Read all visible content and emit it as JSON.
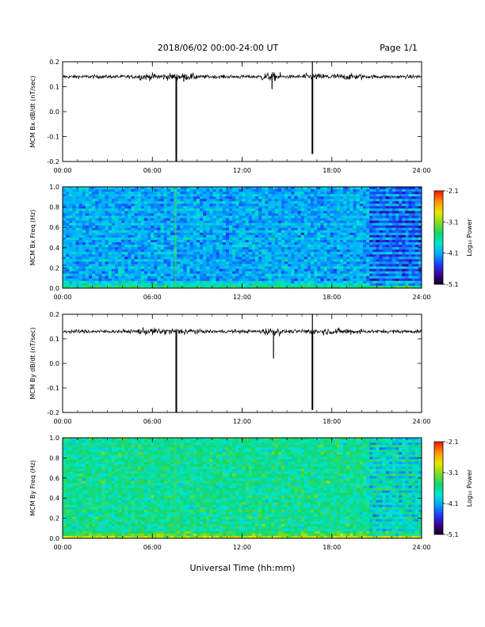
{
  "header": {
    "title": "2018/06/02  00:00-24:00 UT",
    "page": "Page 1/1"
  },
  "colors": {
    "trace": "#000000",
    "colormap": [
      "#0b0010",
      "#3b008f",
      "#1f3bff",
      "#00a8ff",
      "#00e6d0",
      "#14d66a",
      "#7fdc21",
      "#e8e600",
      "#ff9a00",
      "#ff1e00"
    ]
  },
  "colorbar": {
    "label": "Log₁₀ Power",
    "ticks": [
      "-2.1",
      "-3.1",
      "-4.1",
      "-5.1"
    ]
  },
  "x_axis": {
    "ticks": [
      "00:00",
      "06:00",
      "12:00",
      "18:00",
      "24:00"
    ],
    "label": "Universal Time (hh:mm)"
  },
  "chart_data": [
    {
      "type": "line",
      "ylabel": "MCM Bx dB/dt (nT/sec)",
      "xlim": [
        0,
        24
      ],
      "ylim": [
        -0.2,
        0.2
      ],
      "yticks": [
        "0.2",
        "0.1",
        "0.0",
        "-0.1",
        "-0.2"
      ],
      "baseline": 0.14,
      "spikes": [
        {
          "x": 7.6,
          "y": -0.21
        },
        {
          "x": 8.1,
          "y": 0.12
        },
        {
          "x": 14.0,
          "y": 0.09
        },
        {
          "x": 16.7,
          "y": -0.17
        },
        {
          "x": 16.7,
          "y": 0.21
        }
      ]
    },
    {
      "type": "heatmap",
      "ylabel": "MCM Bx Freq (Hz)",
      "xlim": [
        0,
        24
      ],
      "ylim": [
        0,
        1.0
      ],
      "yticks": [
        "1.0",
        "0.8",
        "0.6",
        "0.4",
        "0.2",
        "0.0"
      ],
      "zlim": [
        -5.1,
        -2.1
      ],
      "zlabel": "Log₁₀ Power",
      "typical_level": -4.1
    },
    {
      "type": "line",
      "ylabel": "MCM By dB/dt (nT/sec)",
      "xlim": [
        0,
        24
      ],
      "ylim": [
        -0.2,
        0.2
      ],
      "yticks": [
        "0.2",
        "0.1",
        "0.0",
        "-0.1",
        "-0.2"
      ],
      "baseline": 0.13,
      "spikes": [
        {
          "x": 7.6,
          "y": -0.21
        },
        {
          "x": 14.1,
          "y": 0.02
        },
        {
          "x": 16.7,
          "y": -0.19
        },
        {
          "x": 16.7,
          "y": 0.21
        }
      ]
    },
    {
      "type": "heatmap",
      "ylabel": "MCM By Freq (Hz)",
      "xlim": [
        0,
        24
      ],
      "ylim": [
        0,
        1.0
      ],
      "yticks": [
        "1.0",
        "0.8",
        "0.6",
        "0.4",
        "0.2",
        "0.0"
      ],
      "zlim": [
        -5.1,
        -2.1
      ],
      "zlabel": "Log₁₀ Power",
      "typical_level": -3.6
    }
  ]
}
